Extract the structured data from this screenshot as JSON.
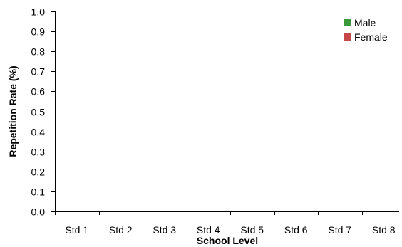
{
  "chart_data": {
    "type": "bar",
    "title": "",
    "xlabel": "School Level",
    "ylabel": "Repetition Rate (%)",
    "categories": [
      "Std 1",
      "Std 2",
      "Std 3",
      "Std 4",
      "Std 5",
      "Std 6",
      "Std 7",
      "Std 8"
    ],
    "series": [
      {
        "name": "Male",
        "color": "#3a9a3a",
        "values": [
          0,
          0,
          0,
          0,
          0,
          0,
          0,
          0
        ]
      },
      {
        "name": "Female",
        "color": "#c8484a",
        "values": [
          0,
          0,
          0,
          0,
          0,
          0,
          0,
          0
        ]
      }
    ],
    "ylim": [
      0,
      1.0
    ],
    "yticks": [
      "0.0",
      "0.1",
      "0.2",
      "0.3",
      "0.4",
      "0.5",
      "0.6",
      "0.7",
      "0.8",
      "0.9",
      "1.0"
    ],
    "grid": false,
    "legend_position": "top-right"
  }
}
